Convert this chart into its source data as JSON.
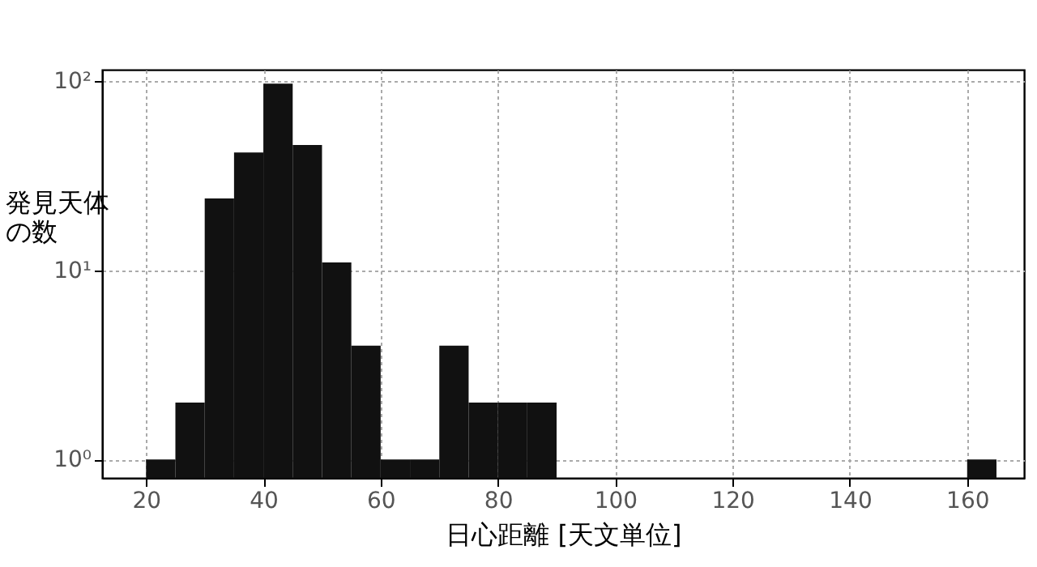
{
  "chart_data": {
    "type": "histogram",
    "xlabel": "日心距離 [天文単位]",
    "ylabel": "発見天体の数",
    "bins": [
      20,
      25,
      30,
      35,
      40,
      45,
      50,
      55,
      60,
      65,
      70,
      75,
      80,
      85,
      90,
      95,
      100,
      105,
      110,
      115,
      120,
      125,
      130,
      135,
      140,
      145,
      150,
      155,
      160,
      165
    ],
    "values": [
      1,
      2,
      24,
      42,
      97,
      46,
      11,
      4,
      1,
      1,
      4,
      2,
      2,
      2,
      null,
      null,
      null,
      null,
      null,
      null,
      null,
      null,
      null,
      null,
      null,
      null,
      null,
      null,
      1
    ],
    "color": "#111111",
    "log": "y",
    "grid": true,
    "xlim": [
      12.5,
      169.7
    ],
    "xticks": [
      20,
      40,
      60,
      80,
      100,
      120,
      140,
      160
    ],
    "ylim": [
      0.8,
      115
    ],
    "yticks": [
      {
        "value": 1,
        "label": "10⁰"
      },
      {
        "value": 10,
        "label": "10¹"
      },
      {
        "value": 100,
        "label": "10²"
      }
    ]
  }
}
